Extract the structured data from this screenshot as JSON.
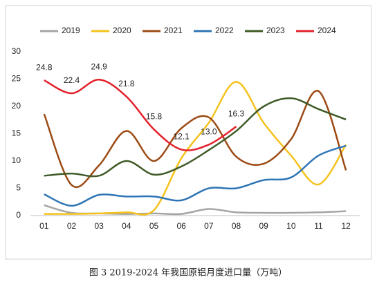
{
  "chart_data": {
    "type": "line",
    "caption": "图 3 2019-2024 年我国原铝月度进口量（万吨）",
    "categories": [
      "01",
      "02",
      "03",
      "04",
      "05",
      "06",
      "07",
      "08",
      "09",
      "10",
      "11",
      "12"
    ],
    "ylim": [
      0,
      30
    ],
    "yticks": [
      0,
      5,
      10,
      15,
      20,
      25,
      30
    ],
    "grid": false,
    "legend": "top",
    "series": [
      {
        "name": "2019",
        "color": "#a5a5a5",
        "values": [
          1.9,
          0.5,
          0.4,
          0.3,
          0.4,
          0.3,
          1.2,
          0.6,
          0.5,
          0.5,
          0.6,
          0.8
        ]
      },
      {
        "name": "2020",
        "color": "#f5c21b",
        "values": [
          0.3,
          0.3,
          0.4,
          0.6,
          1.0,
          10.5,
          17,
          24.5,
          17,
          11,
          5.7,
          13
        ]
      },
      {
        "name": "2021",
        "color": "#9c4a14",
        "values": [
          18.6,
          5.6,
          9.2,
          15.5,
          10,
          16,
          18,
          10.8,
          9.5,
          14,
          22.8,
          8.3
        ]
      },
      {
        "name": "2022",
        "color": "#2e75b6",
        "values": [
          3.9,
          1.8,
          3.8,
          3.5,
          3.5,
          2.8,
          5,
          5,
          6.5,
          7,
          11,
          12.8
        ]
      },
      {
        "name": "2023",
        "color": "#3f5a26",
        "values": [
          7.3,
          7.7,
          7.3,
          10,
          7.5,
          9,
          12,
          15.5,
          20,
          21.5,
          19.5,
          17.6
        ]
      },
      {
        "name": "2024",
        "color": "#e3202a",
        "values": [
          24.8,
          22.4,
          24.9,
          21.8,
          15.8,
          12.1,
          13.0,
          16.3,
          null,
          null,
          null,
          null
        ],
        "value_labels": [
          "24.8",
          "22.4",
          "24.9",
          "21.8",
          "15.8",
          "12.1",
          "13.0",
          "16.3",
          null,
          null,
          null,
          null
        ]
      }
    ]
  }
}
